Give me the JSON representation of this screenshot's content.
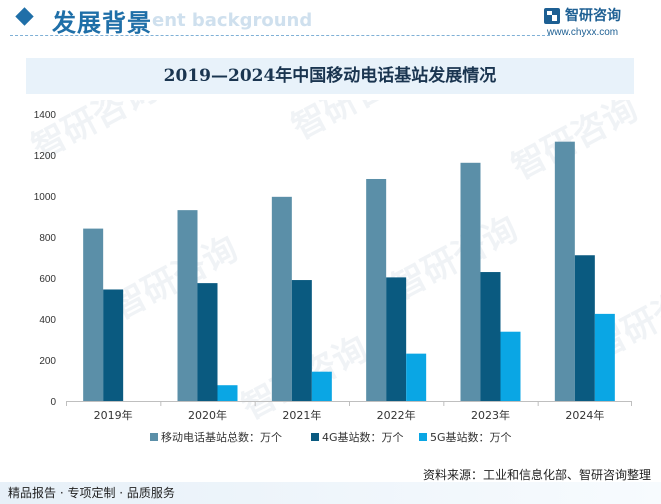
{
  "header": {
    "title": "发展背景",
    "title_ghost": "ent background"
  },
  "brand": {
    "name": "智研咨询",
    "url": "www.chyxx.com"
  },
  "footer": {
    "left": "精品报告 · 专项定制 · 品质服务",
    "right": "资料来源：工业和信息化部、智研咨询整理"
  },
  "watermark_text": "智研咨询",
  "colors": {
    "series_total": "#5b8fa8",
    "series_4g": "#0a5a80",
    "series_5g": "#0aa6e4",
    "accent": "#1f6fa8"
  },
  "chart_data": {
    "type": "bar",
    "title": "2019—2024年中国移动电话基站发展情况",
    "categories": [
      "2019年",
      "2020年",
      "2021年",
      "2022年",
      "2023年",
      "2024年"
    ],
    "series": [
      {
        "name": "移动电话基站总数：万个",
        "values": [
          841,
          931,
          996,
          1083,
          1162,
          1265
        ]
      },
      {
        "name": "4G基站数：万个",
        "values": [
          544,
          575,
          590,
          603,
          629,
          711
        ]
      },
      {
        "name": "5G基站数：万个",
        "values": [
          null,
          77,
          143,
          231,
          338,
          425
        ]
      }
    ],
    "ylim": [
      0,
      1400
    ],
    "yticks": [
      0,
      200,
      400,
      600,
      800,
      1000,
      1200,
      1400
    ],
    "grid": false,
    "legend_position": "bottom"
  }
}
